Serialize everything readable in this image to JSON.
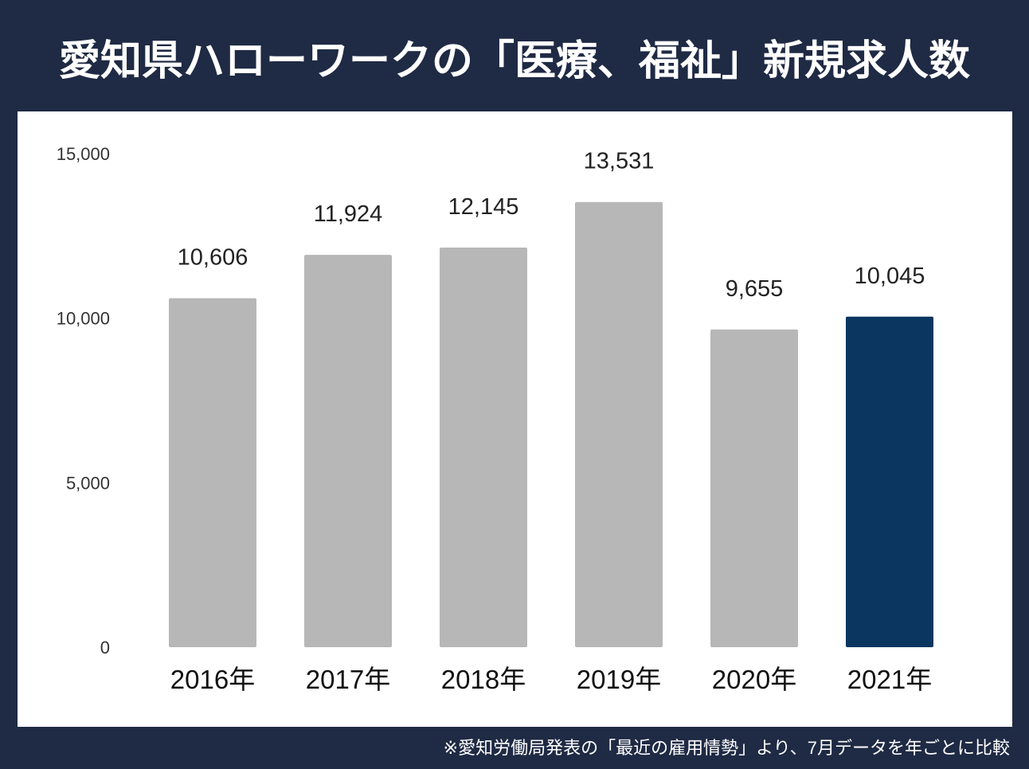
{
  "title": "愛知県ハローワークの「医療、福祉」新規求人数",
  "footnote": "※愛知労働局発表の「最近の雇用情勢」より、7月データを年ごとに比較",
  "chart_data": {
    "type": "bar",
    "categories": [
      "2016年",
      "2017年",
      "2018年",
      "2019年",
      "2020年",
      "2021年"
    ],
    "values": [
      10606,
      11924,
      12145,
      13531,
      9655,
      10045
    ],
    "value_labels": [
      "10,606",
      "11,924",
      "12,145",
      "13,531",
      "9,655",
      "10,045"
    ],
    "ylim": [
      0,
      15000
    ],
    "yticks": [
      0,
      5000,
      10000,
      15000
    ],
    "ytick_labels": [
      "0",
      "5,000",
      "10,000",
      "15,000"
    ],
    "grid": false,
    "colors": {
      "default": "#b7b7b7",
      "highlight": "#0b365f",
      "background": "#1f2a44"
    },
    "highlight_index": 5
  }
}
